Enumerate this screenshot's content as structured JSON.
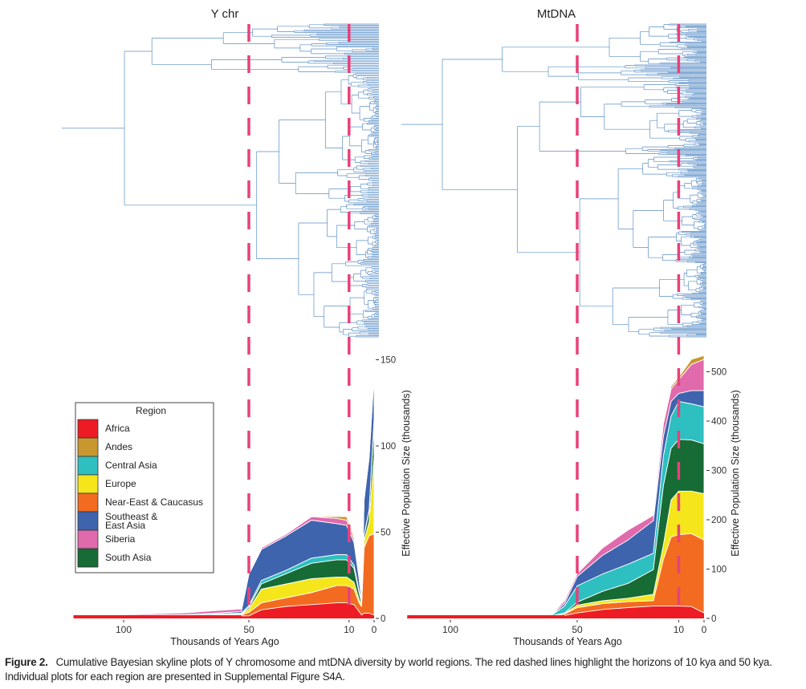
{
  "figure": {
    "label": "Figure 2.",
    "caption": "Cumulative Bayesian skyline plots of Y chromosome and mtDNA diversity by world regions. The red dashed lines highlight the horizons of 10 kya and 50 kya. Individual plots for each region are presented in Supplemental Figure S4A."
  },
  "legend": {
    "title": "Region",
    "placement": "left",
    "items": [
      {
        "label_lines": [
          "Africa"
        ],
        "color": "#ed1c24"
      },
      {
        "label_lines": [
          "Andes"
        ],
        "color": "#c9972f"
      },
      {
        "label_lines": [
          "Central Asia"
        ],
        "color": "#2ebfc0"
      },
      {
        "label_lines": [
          "Europe"
        ],
        "color": "#f5e61b"
      },
      {
        "label_lines": [
          "Near-East & Caucasus"
        ],
        "color": "#f26b21"
      },
      {
        "label_lines": [
          "Southeast &",
          "East Asia"
        ],
        "color": "#3f64ae"
      },
      {
        "label_lines": [
          "Siberia"
        ],
        "color": "#e06aac"
      },
      {
        "label_lines": [
          "South Asia"
        ],
        "color": "#176b35"
      }
    ]
  },
  "highlight_color": "#e8417a",
  "tree_color": "#5b8fc7",
  "chart_data": [
    {
      "type": "area",
      "title": "Y chr",
      "xlabel": "Thousands of Years Ago",
      "ylabel": "Effective Population Size (thousands)",
      "xlim": [
        120,
        0
      ],
      "ylim": [
        0,
        150
      ],
      "xticks": [
        100,
        50,
        10,
        0
      ],
      "yticks": [
        0,
        50,
        100,
        150
      ],
      "highlight_lines_kya": [
        50,
        10
      ],
      "stacked": true,
      "times": [
        120,
        75,
        65,
        53,
        50,
        45,
        35,
        25,
        15,
        11,
        8,
        6,
        5,
        4,
        2,
        0
      ],
      "series": [
        {
          "name": "Africa",
          "color": "#ed1c24",
          "values": [
            1.5,
            1.5,
            1.5,
            1.5,
            1.5,
            5,
            7,
            8,
            9,
            9,
            8,
            4,
            2,
            3,
            3,
            2
          ]
        },
        {
          "name": "Near-East & Caucasus",
          "color": "#f26b21",
          "values": [
            0,
            0,
            0.2,
            0.5,
            2,
            4,
            5,
            7,
            10,
            10,
            9,
            5,
            5,
            38,
            45,
            47
          ]
        },
        {
          "name": "Europe",
          "color": "#f5e61b",
          "values": [
            0,
            0,
            0.2,
            0.3,
            2,
            8,
            8,
            8,
            5,
            5,
            4,
            2,
            1,
            4,
            8,
            45
          ]
        },
        {
          "name": "South Asia",
          "color": "#176b35",
          "values": [
            0,
            0,
            0.1,
            0.2,
            1,
            3,
            6,
            9,
            10,
            10,
            8,
            4,
            1,
            3,
            6,
            20
          ]
        },
        {
          "name": "Central Asia",
          "color": "#2ebfc0",
          "values": [
            0,
            0.5,
            0.6,
            0.5,
            1,
            2,
            2,
            3,
            3,
            3,
            2,
            1,
            0.5,
            0.5,
            1,
            2
          ]
        },
        {
          "name": "Southeast & East Asia",
          "color": "#3f64ae",
          "values": [
            0,
            0.2,
            0.3,
            1,
            18,
            18,
            20,
            22,
            18,
            17,
            13,
            7,
            1,
            20,
            30,
            25
          ]
        },
        {
          "name": "Siberia",
          "color": "#e06aac",
          "values": [
            0,
            1,
            1.5,
            1.5,
            1,
            1,
            1,
            2,
            3,
            3,
            2,
            1,
            0.3,
            0.5,
            2,
            6
          ]
        },
        {
          "name": "Andes",
          "color": "#c9972f",
          "values": [
            0,
            0,
            0,
            0,
            0,
            0,
            0,
            0,
            1,
            2,
            1.5,
            0.5,
            0,
            0,
            0,
            0
          ]
        }
      ]
    },
    {
      "type": "area",
      "title": "MtDNA",
      "xlabel": "Thousands of Years Ago",
      "ylabel": "Effective Population Size (thousands)",
      "xlim": [
        117,
        0
      ],
      "ylim": [
        0,
        530
      ],
      "xticks": [
        100,
        50,
        10,
        0
      ],
      "yticks": [
        0,
        100,
        200,
        300,
        400,
        500
      ],
      "highlight_lines_kya": [
        50,
        10
      ],
      "stacked": true,
      "times": [
        117,
        70,
        60,
        55,
        50,
        40,
        30,
        20,
        16,
        13,
        10,
        5,
        0
      ],
      "series": [
        {
          "name": "Africa",
          "color": "#ed1c24",
          "values": [
            3,
            3,
            3,
            6,
            11,
            18,
            22,
            25,
            25,
            25,
            25,
            24,
            11
          ]
        },
        {
          "name": "Near-East & Caucasus",
          "color": "#f26b21",
          "values": [
            0,
            0.2,
            1,
            3,
            11,
            12,
            12,
            11,
            95,
            140,
            145,
            148,
            148
          ]
        },
        {
          "name": "Europe",
          "color": "#f5e61b",
          "values": [
            0,
            0.2,
            1,
            1,
            5,
            6,
            7,
            13,
            30,
            75,
            88,
            86,
            94
          ]
        },
        {
          "name": "South Asia",
          "color": "#176b35",
          "values": [
            0,
            0.2,
            0.5,
            1,
            6,
            19,
            30,
            50,
            120,
            105,
            105,
            104,
            101
          ]
        },
        {
          "name": "Central Asia",
          "color": "#2ebfc0",
          "values": [
            0,
            0.2,
            1.5,
            14,
            33,
            35,
            39,
            33,
            60,
            65,
            77,
            73,
            75
          ]
        },
        {
          "name": "Southeast & East Asia",
          "color": "#3f64ae",
          "values": [
            0,
            0.2,
            0.5,
            5,
            19,
            38,
            49,
            66,
            40,
            30,
            16,
            27,
            33
          ]
        },
        {
          "name": "Siberia",
          "color": "#e06aac",
          "values": [
            0,
            0.2,
            1,
            6,
            6,
            15,
            20,
            11,
            25,
            25,
            28,
            53,
            63
          ]
        },
        {
          "name": "Andes",
          "color": "#c9972f",
          "values": [
            0,
            0,
            0,
            0,
            0,
            0,
            1,
            2,
            2,
            5,
            5,
            10,
            8
          ]
        }
      ]
    }
  ]
}
